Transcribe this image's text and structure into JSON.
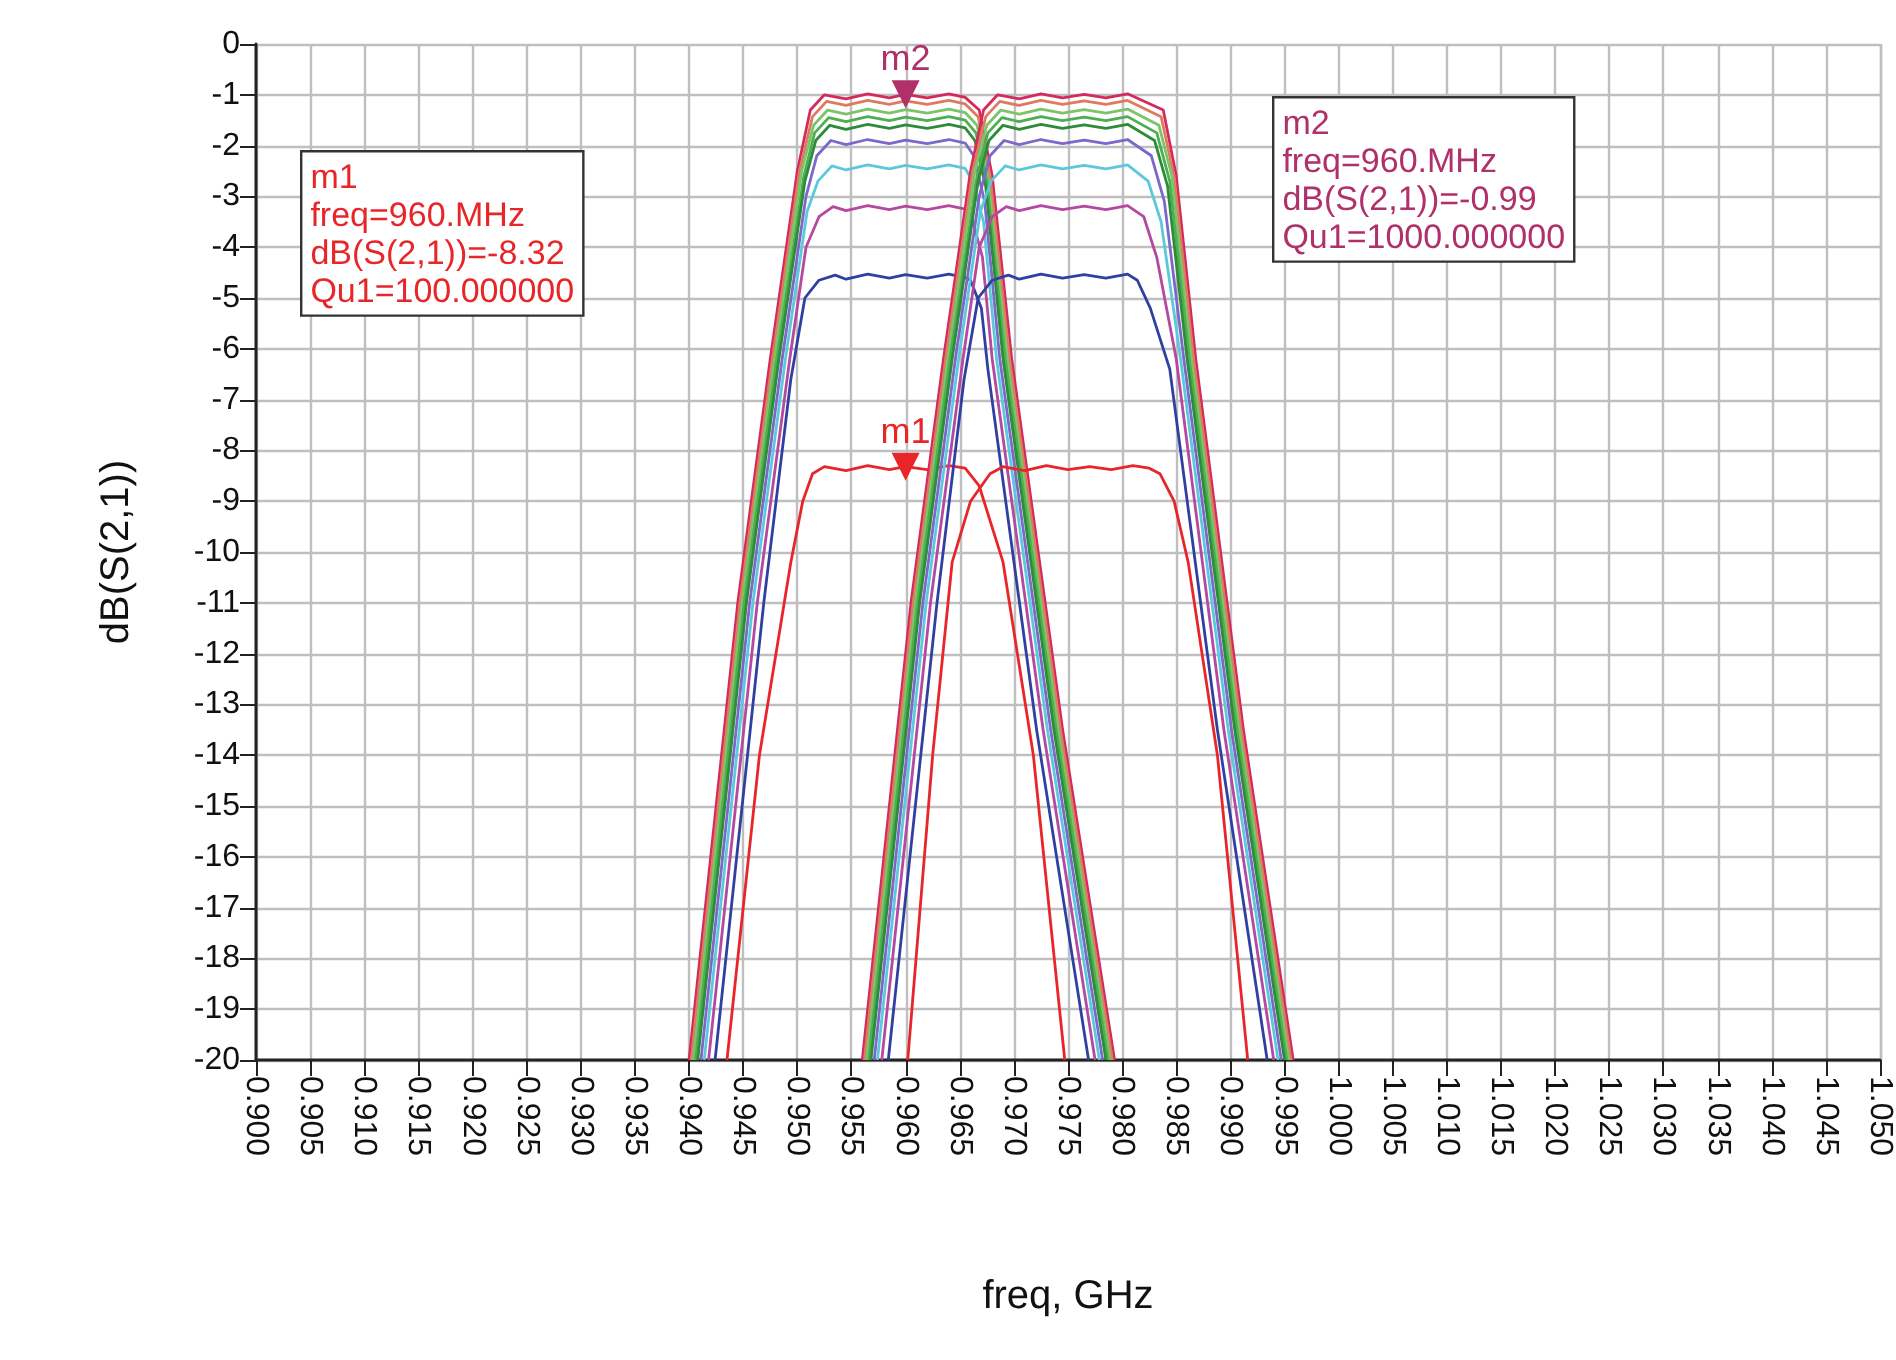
{
  "chart_data": {
    "type": "line",
    "xlabel": "freq, GHz",
    "ylabel": "dB(S(2,1))",
    "xlim": [
      0.9,
      1.05
    ],
    "xticks": [
      {
        "value": 0.9,
        "label": "0.900"
      },
      0.905,
      {
        "value": 0.91,
        "label": "0.910"
      },
      0.915,
      {
        "value": 0.92,
        "label": "0.920"
      },
      0.925,
      {
        "value": 0.93,
        "label": "0.930"
      },
      0.935,
      {
        "value": 0.94,
        "label": "0.940"
      },
      0.945,
      {
        "value": 0.95,
        "label": "0.950"
      },
      0.955,
      {
        "value": 0.96,
        "label": "0.960"
      },
      0.965,
      {
        "value": 0.97,
        "label": "0.970"
      },
      0.975,
      {
        "value": 0.98,
        "label": "0.980"
      },
      0.985,
      {
        "value": 0.99,
        "label": "0.990"
      },
      0.995,
      {
        "value": 1.0,
        "label": "1.000"
      },
      1.005,
      {
        "value": 1.01,
        "label": "1.010"
      },
      1.015,
      {
        "value": 1.02,
        "label": "1.020"
      },
      1.025,
      {
        "value": 1.03,
        "label": "1.030"
      },
      1.035,
      {
        "value": 1.04,
        "label": "1.040"
      },
      1.045,
      {
        "value": 1.05,
        "label": "1.050"
      }
    ],
    "ylim": [
      -20,
      0
    ],
    "yticks": [
      0,
      -1,
      -2,
      -3,
      -4,
      -5,
      -6,
      -7,
      -8,
      -9,
      -10,
      -11,
      -12,
      -13,
      -14,
      -15,
      -16,
      -17,
      -18,
      -19,
      -20
    ],
    "grid": true,
    "marker": "none",
    "line_style": "solid",
    "annotations": [
      {
        "text": "m2",
        "x": 0.96,
        "y": -0.99
      },
      {
        "text": "m1",
        "x": 0.96,
        "y": -8.32
      },
      "m1\nfreq=960.MHz\ndB(S(2,1))=-8.32\nQu1=100.000000",
      "m2\nfreq=960.MHz\ndB(S(2,1))=-0.99\nQu1=1000.000000"
    ],
    "series": [
      {
        "color": "#d42a5c",
        "x": [
          0.94,
          0.9445,
          0.9475,
          0.95,
          0.9512,
          0.9525,
          0.9545,
          0.9565,
          0.9585,
          0.96,
          0.962,
          0.964,
          0.9655,
          0.9668,
          0.968,
          0.9698,
          0.9745,
          0.9793
        ],
        "values": [
          -20,
          -11,
          -6.2,
          -2.5,
          -1.3,
          -1.0,
          -1.08,
          -0.98,
          -1.06,
          -0.99,
          -1.06,
          -0.98,
          -1.05,
          -1.3,
          -2.6,
          -6.2,
          -13.5,
          -20
        ]
      },
      {
        "color": "#e07a5f",
        "x": [
          0.9402,
          0.9447,
          0.9477,
          0.9502,
          0.9514,
          0.9527,
          0.9545,
          0.9565,
          0.9585,
          0.96,
          0.962,
          0.964,
          0.9655,
          0.9667,
          0.9678,
          0.9696,
          0.9743,
          0.9791
        ],
        "values": [
          -20,
          -11,
          -6.2,
          -2.5,
          -1.43,
          -1.13,
          -1.21,
          -1.11,
          -1.19,
          -1.12,
          -1.19,
          -1.11,
          -1.18,
          -1.43,
          -2.6,
          -6.2,
          -13.5,
          -20
        ]
      },
      {
        "color": "#7cc36a",
        "x": [
          0.9404,
          0.9449,
          0.9479,
          0.9504,
          0.9515,
          0.9528,
          0.9545,
          0.9565,
          0.9585,
          0.96,
          0.962,
          0.964,
          0.9655,
          0.9666,
          0.9676,
          0.9694,
          0.9741,
          0.9789
        ],
        "values": [
          -20,
          -11,
          -6.2,
          -2.5,
          -1.6,
          -1.3,
          -1.38,
          -1.28,
          -1.36,
          -1.29,
          -1.36,
          -1.28,
          -1.35,
          -1.6,
          -2.6,
          -6.2,
          -13.5,
          -20
        ]
      },
      {
        "color": "#4caf50",
        "x": [
          0.9406,
          0.9451,
          0.9481,
          0.9506,
          0.9516,
          0.9529,
          0.9545,
          0.9565,
          0.9585,
          0.96,
          0.962,
          0.964,
          0.9655,
          0.9665,
          0.9675,
          0.9692,
          0.9739,
          0.9787
        ],
        "values": [
          -20,
          -11,
          -6.2,
          -2.6,
          -1.75,
          -1.45,
          -1.53,
          -1.43,
          -1.51,
          -1.44,
          -1.51,
          -1.43,
          -1.5,
          -1.75,
          -2.7,
          -6.2,
          -13.5,
          -20
        ]
      },
      {
        "color": "#2e8b3a",
        "x": [
          0.9408,
          0.9453,
          0.9483,
          0.9507,
          0.9517,
          0.953,
          0.9545,
          0.9565,
          0.9585,
          0.96,
          0.962,
          0.964,
          0.9655,
          0.9664,
          0.9674,
          0.969,
          0.9737,
          0.9785
        ],
        "values": [
          -20,
          -11,
          -6.2,
          -2.7,
          -1.9,
          -1.6,
          -1.68,
          -1.58,
          -1.66,
          -1.59,
          -1.66,
          -1.58,
          -1.65,
          -1.9,
          -2.8,
          -6.2,
          -13.5,
          -20
        ]
      },
      {
        "color": "#7b68c8",
        "x": [
          0.9411,
          0.9456,
          0.9486,
          0.9508,
          0.9518,
          0.9531,
          0.9545,
          0.9565,
          0.9585,
          0.96,
          0.962,
          0.964,
          0.9655,
          0.9663,
          0.9673,
          0.9687,
          0.9734,
          0.9782
        ],
        "values": [
          -20,
          -11,
          -6.2,
          -3.0,
          -2.2,
          -1.9,
          -1.98,
          -1.88,
          -1.96,
          -1.89,
          -1.96,
          -1.88,
          -1.95,
          -2.2,
          -3.1,
          -6.2,
          -13.5,
          -20
        ]
      },
      {
        "color": "#5bc8dc",
        "x": [
          0.9414,
          0.9459,
          0.9489,
          0.9509,
          0.9519,
          0.9532,
          0.9545,
          0.9565,
          0.9585,
          0.96,
          0.962,
          0.964,
          0.9655,
          0.9662,
          0.9672,
          0.9684,
          0.9731,
          0.9779
        ],
        "values": [
          -20,
          -11,
          -6.2,
          -3.3,
          -2.7,
          -2.4,
          -2.48,
          -2.38,
          -2.46,
          -2.39,
          -2.46,
          -2.38,
          -2.45,
          -2.7,
          -3.5,
          -6.2,
          -13.5,
          -20
        ]
      },
      {
        "color": "#b5489f",
        "x": [
          0.9418,
          0.9463,
          0.9493,
          0.9508,
          0.952,
          0.9533,
          0.9545,
          0.9565,
          0.9585,
          0.96,
          0.962,
          0.964,
          0.9655,
          0.9661,
          0.9671,
          0.968,
          0.9727,
          0.9775
        ],
        "values": [
          -20,
          -11,
          -6.2,
          -4.0,
          -3.4,
          -3.2,
          -3.28,
          -3.18,
          -3.26,
          -3.19,
          -3.26,
          -3.18,
          -3.25,
          -3.4,
          -4.2,
          -6.2,
          -13.5,
          -20
        ]
      },
      {
        "color": "#3040a0",
        "x": [
          0.9424,
          0.9469,
          0.9494,
          0.9507,
          0.952,
          0.9535,
          0.9545,
          0.9565,
          0.9585,
          0.96,
          0.962,
          0.964,
          0.9655,
          0.966,
          0.967,
          0.9676,
          0.9721,
          0.9769
        ],
        "values": [
          -20,
          -11,
          -6.6,
          -5.0,
          -4.65,
          -4.55,
          -4.63,
          -4.53,
          -4.61,
          -4.54,
          -4.61,
          -4.53,
          -4.6,
          -4.65,
          -5.2,
          -6.4,
          -13.5,
          -20
        ]
      },
      {
        "color": "#e8262a",
        "x": [
          0.9435,
          0.9465,
          0.9494,
          0.9505,
          0.9514,
          0.9525,
          0.9545,
          0.9565,
          0.9585,
          0.96,
          0.962,
          0.964,
          0.9655,
          0.9668,
          0.969,
          0.9718,
          0.9747
        ],
        "values": [
          -20,
          -14,
          -10.2,
          -9.0,
          -8.46,
          -8.32,
          -8.4,
          -8.3,
          -8.38,
          -8.32,
          -8.38,
          -8.3,
          -8.35,
          -8.7,
          -10.2,
          -14,
          -20
        ]
      },
      {
        "color": "#d42a5c",
        "x": [
          0.956,
          0.9605,
          0.9635,
          0.966,
          0.9672,
          0.9685,
          0.9705,
          0.9725,
          0.9745,
          0.9765,
          0.9785,
          0.9805,
          0.9838,
          0.985,
          0.9868,
          0.9912,
          0.9958
        ],
        "values": [
          -20,
          -11,
          -6.2,
          -2.5,
          -1.3,
          -1.0,
          -1.08,
          -0.98,
          -1.06,
          -0.99,
          -1.06,
          -0.98,
          -1.3,
          -2.6,
          -6.2,
          -13.5,
          -20
        ]
      },
      {
        "color": "#e07a5f",
        "x": [
          0.9562,
          0.9607,
          0.9637,
          0.9662,
          0.9674,
          0.9687,
          0.9705,
          0.9725,
          0.9745,
          0.9765,
          0.9785,
          0.9805,
          0.9836,
          0.9848,
          0.9866,
          0.991,
          0.9956
        ],
        "values": [
          -20,
          -11,
          -6.2,
          -2.5,
          -1.43,
          -1.13,
          -1.21,
          -1.11,
          -1.19,
          -1.12,
          -1.19,
          -1.11,
          -1.43,
          -2.6,
          -6.2,
          -13.5,
          -20
        ]
      },
      {
        "color": "#7cc36a",
        "x": [
          0.9564,
          0.9609,
          0.9639,
          0.9664,
          0.9675,
          0.9688,
          0.9705,
          0.9725,
          0.9745,
          0.9765,
          0.9785,
          0.9805,
          0.9834,
          0.9846,
          0.9864,
          0.9908,
          0.9954
        ],
        "values": [
          -20,
          -11,
          -6.2,
          -2.5,
          -1.6,
          -1.3,
          -1.38,
          -1.28,
          -1.36,
          -1.29,
          -1.36,
          -1.28,
          -1.6,
          -2.6,
          -6.2,
          -13.5,
          -20
        ]
      },
      {
        "color": "#4caf50",
        "x": [
          0.9566,
          0.9611,
          0.9641,
          0.9666,
          0.9676,
          0.9689,
          0.9705,
          0.9725,
          0.9745,
          0.9765,
          0.9785,
          0.9805,
          0.9832,
          0.9844,
          0.9862,
          0.9906,
          0.9952
        ],
        "values": [
          -20,
          -11,
          -6.2,
          -2.6,
          -1.75,
          -1.45,
          -1.53,
          -1.43,
          -1.51,
          -1.44,
          -1.51,
          -1.43,
          -1.75,
          -2.7,
          -6.2,
          -13.5,
          -20
        ]
      },
      {
        "color": "#2e8b3a",
        "x": [
          0.9568,
          0.9613,
          0.9643,
          0.9667,
          0.9677,
          0.969,
          0.9705,
          0.9725,
          0.9745,
          0.9765,
          0.9785,
          0.9805,
          0.983,
          0.9842,
          0.986,
          0.9904,
          0.995
        ],
        "values": [
          -20,
          -11,
          -6.2,
          -2.7,
          -1.9,
          -1.6,
          -1.68,
          -1.58,
          -1.66,
          -1.59,
          -1.66,
          -1.58,
          -1.9,
          -2.8,
          -6.2,
          -13.5,
          -20
        ]
      },
      {
        "color": "#7b68c8",
        "x": [
          0.9571,
          0.9616,
          0.9646,
          0.9668,
          0.9678,
          0.9691,
          0.9705,
          0.9725,
          0.9745,
          0.9765,
          0.9785,
          0.9805,
          0.9827,
          0.9839,
          0.9857,
          0.9901,
          0.9947
        ],
        "values": [
          -20,
          -11,
          -6.2,
          -3.0,
          -2.2,
          -1.9,
          -1.98,
          -1.88,
          -1.96,
          -1.89,
          -1.96,
          -1.88,
          -2.2,
          -3.1,
          -6.2,
          -13.5,
          -20
        ]
      },
      {
        "color": "#5bc8dc",
        "x": [
          0.9574,
          0.9619,
          0.9649,
          0.9669,
          0.9679,
          0.9692,
          0.9705,
          0.9725,
          0.9745,
          0.9765,
          0.9785,
          0.9805,
          0.9824,
          0.9836,
          0.9854,
          0.9898,
          0.9944
        ],
        "values": [
          -20,
          -11,
          -6.2,
          -3.3,
          -2.7,
          -2.4,
          -2.48,
          -2.38,
          -2.46,
          -2.39,
          -2.46,
          -2.38,
          -2.7,
          -3.5,
          -6.2,
          -13.5,
          -20
        ]
      },
      {
        "color": "#b5489f",
        "x": [
          0.9578,
          0.9623,
          0.9653,
          0.9668,
          0.968,
          0.9693,
          0.9705,
          0.9725,
          0.9745,
          0.9765,
          0.9785,
          0.9805,
          0.982,
          0.9832,
          0.985,
          0.9894,
          0.994
        ],
        "values": [
          -20,
          -11,
          -6.2,
          -4.0,
          -3.4,
          -3.2,
          -3.28,
          -3.18,
          -3.26,
          -3.19,
          -3.26,
          -3.18,
          -3.4,
          -4.2,
          -6.2,
          -13.5,
          -20
        ]
      },
      {
        "color": "#3040a0",
        "x": [
          0.9584,
          0.9629,
          0.9654,
          0.9667,
          0.968,
          0.9695,
          0.9705,
          0.9725,
          0.9745,
          0.9765,
          0.9785,
          0.9805,
          0.9814,
          0.9826,
          0.9844,
          0.9888,
          0.9934
        ],
        "values": [
          -20,
          -11,
          -6.6,
          -5.0,
          -4.65,
          -4.55,
          -4.63,
          -4.53,
          -4.61,
          -4.54,
          -4.61,
          -4.53,
          -4.65,
          -5.2,
          -6.4,
          -13.5,
          -20
        ]
      },
      {
        "color": "#e8262a",
        "x": [
          0.9602,
          0.9625,
          0.9643,
          0.966,
          0.9678,
          0.969,
          0.971,
          0.973,
          0.975,
          0.977,
          0.979,
          0.981,
          0.9825,
          0.9835,
          0.9848,
          0.9861,
          0.9888,
          0.9916
        ],
        "values": [
          -20,
          -14,
          -10.2,
          -9.0,
          -8.46,
          -8.32,
          -8.4,
          -8.3,
          -8.38,
          -8.32,
          -8.38,
          -8.3,
          -8.35,
          -8.46,
          -9.0,
          -10.2,
          -14,
          -20
        ]
      }
    ]
  }
}
